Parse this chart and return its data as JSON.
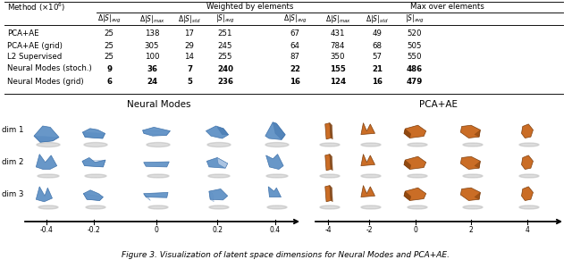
{
  "title": "Figure 3. Visualization of latent space dimensions for Neural Modes and PCA+AE.",
  "rows": [
    [
      "PCA+AE",
      "25",
      "138",
      "17",
      "251",
      "67",
      "431",
      "49",
      "520"
    ],
    [
      "PCA+AE (grid)",
      "25",
      "305",
      "29",
      "245",
      "64",
      "784",
      "68",
      "505"
    ],
    [
      "L2 Supervised",
      "25",
      "100",
      "14",
      "255",
      "87",
      "350",
      "57",
      "550"
    ],
    [
      "Neural Modes (stoch.)",
      "9",
      "36",
      "7",
      "240",
      "22",
      "155",
      "21",
      "486"
    ],
    [
      "Neural Modes (grid)",
      "6",
      "24",
      "5",
      "236",
      "16",
      "124",
      "16",
      "479"
    ]
  ],
  "bold_rows": [
    3,
    4
  ],
  "nm_label": "Neural Modes",
  "pca_label": "PCA+AE",
  "nm_axis_ticks": [
    "-0.4",
    "-0.2",
    "0",
    "0.2",
    "0.4"
  ],
  "pca_axis_ticks": [
    "-4",
    "-2",
    "0",
    "2",
    "4"
  ],
  "dim_labels": [
    "dim 1",
    "dim 2",
    "dim 3"
  ],
  "blue_main": "#5b8ec4",
  "blue_dark": "#3a6ea8",
  "blue_shadow": "#c8d8ee",
  "orange_main": "#c8651a",
  "orange_dark": "#7a3a08",
  "orange_shadow": "#e8c090",
  "bg_color": "#ffffff"
}
